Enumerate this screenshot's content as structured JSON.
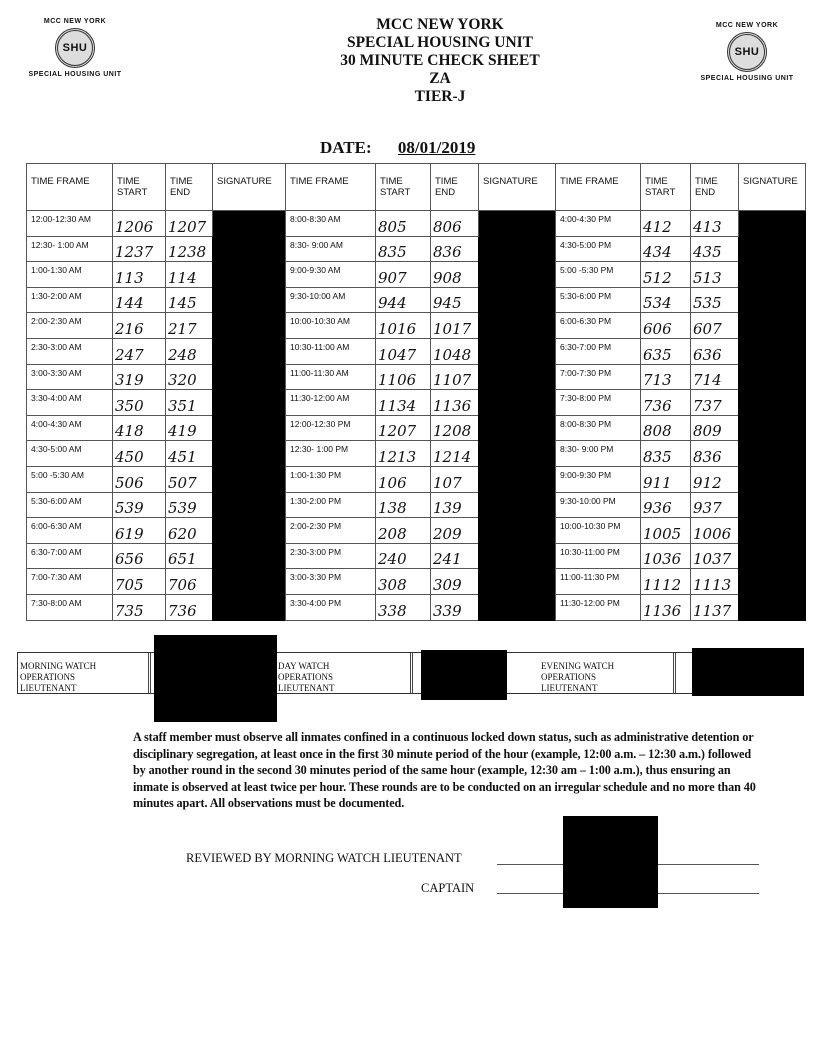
{
  "header": {
    "logo_top": "MCC NEW YORK",
    "logo_seal": "SHU",
    "logo_bottom": "SPECIAL HOUSING UNIT",
    "lines": [
      "MCC NEW YORK",
      "SPECIAL HOUSING UNIT",
      "30 MINUTE CHECK SHEET",
      "ZA",
      "TIER-J"
    ],
    "date_label": "DATE:",
    "date_value": "08/01/2019"
  },
  "columns": {
    "time_frame": "TIME FRAME",
    "time_start": "TIME START",
    "time_end": "TIME END",
    "signature": "SIGNATURE"
  },
  "sections": [
    {
      "rows": [
        [
          "12:00-12:30 AM",
          "1206",
          "1207"
        ],
        [
          "12:30- 1:00 AM",
          "1237",
          "1238"
        ],
        [
          "1:00-1:30 AM",
          "113",
          "114"
        ],
        [
          "1:30-2:00 AM",
          "144",
          "145"
        ],
        [
          "2:00-2:30 AM",
          "216",
          "217"
        ],
        [
          "2:30-3:00 AM",
          "247",
          "248"
        ],
        [
          "3:00-3:30 AM",
          "319",
          "320"
        ],
        [
          "3:30-4:00 AM",
          "350",
          "351"
        ],
        [
          "4:00-4:30 AM",
          "418",
          "419"
        ],
        [
          "4:30-5:00 AM",
          "450",
          "451"
        ],
        [
          "5:00 -5:30 AM",
          "506",
          "507"
        ],
        [
          "5:30-6:00 AM",
          "539",
          "539"
        ],
        [
          "6:00-6:30 AM",
          "619",
          "620"
        ],
        [
          "6:30-7:00 AM",
          "656",
          "651"
        ],
        [
          "7:00-7:30 AM",
          "705",
          "706"
        ],
        [
          "7:30-8:00 AM",
          "735",
          "736"
        ]
      ]
    },
    {
      "rows": [
        [
          "8:00-8:30 AM",
          "805",
          "806"
        ],
        [
          "8:30- 9:00 AM",
          "835",
          "836"
        ],
        [
          "9:00-9:30 AM",
          "907",
          "908"
        ],
        [
          "9:30-10:00 AM",
          "944",
          "945"
        ],
        [
          "10:00-10:30 AM",
          "1016",
          "1017"
        ],
        [
          "10:30-11:00 AM",
          "1047",
          "1048"
        ],
        [
          "11:00-11:30 AM",
          "1106",
          "1107"
        ],
        [
          "11:30-12:00 AM",
          "1134",
          "1136"
        ],
        [
          "12:00-12:30 PM",
          "1207",
          "1208"
        ],
        [
          "12:30- 1:00 PM",
          "1213",
          "1214"
        ],
        [
          "1:00-1:30 PM",
          "106",
          "107"
        ],
        [
          "1:30-2:00 PM",
          "138",
          "139"
        ],
        [
          "2:00-2:30 PM",
          "208",
          "209"
        ],
        [
          "2:30-3:00 PM",
          "240",
          "241"
        ],
        [
          "3:00-3:30 PM",
          "308",
          "309"
        ],
        [
          "3:30-4:00 PM",
          "338",
          "339"
        ]
      ]
    },
    {
      "rows": [
        [
          "4:00-4:30 PM",
          "412",
          "413"
        ],
        [
          "4:30-5:00 PM",
          "434",
          "435"
        ],
        [
          "5:00 -5:30 PM",
          "512",
          "513"
        ],
        [
          "5:30-6:00 PM",
          "534",
          "535"
        ],
        [
          "6:00-6:30 PM",
          "606",
          "607"
        ],
        [
          "6:30-7:00 PM",
          "635",
          "636"
        ],
        [
          "7:00-7:30 PM",
          "713",
          "714"
        ],
        [
          "7:30-8:00 PM",
          "736",
          "737"
        ],
        [
          "8:00-8:30 PM",
          "808",
          "809"
        ],
        [
          "8:30- 9:00 PM",
          "835",
          "836"
        ],
        [
          "9:00-9:30 PM",
          "911",
          "912"
        ],
        [
          "9:30-10:00 PM",
          "936",
          "937"
        ],
        [
          "10:00-10:30 PM",
          "1005",
          "1006"
        ],
        [
          "10:30-11:00 PM",
          "1036",
          "1037"
        ],
        [
          "11:00-11:30 PM",
          "1112",
          "1113"
        ],
        [
          "11:30-12:00 PM",
          "1136",
          "1137"
        ]
      ]
    }
  ],
  "watch": {
    "morning": "MORNING WATCH OPERATIONS LIEUTENANT",
    "day": "DAY WATCH OPERATIONS LIEUTENANT",
    "evening": "EVENING WATCH OPERATIONS LIEUTENANT"
  },
  "instructions": "A staff member must observe all inmates confined in a continuous locked down status, such as administrative detention or disciplinary segregation, at least once in the first 30 minute period of the hour (example, 12:00 a.m. – 12:30 a.m.) followed by another round in the second 30 minutes period of the same hour (example, 12:30 am – 1:00 a.m.), thus ensuring an inmate is observed at least twice per hour. These rounds are to be conducted on an irregular schedule and no more than 40 minutes apart. All observations must be documented.",
  "review": {
    "morning_label": "REVIEWED BY MORNING WATCH LIEUTENANT",
    "captain_label": "CAPTAIN"
  }
}
